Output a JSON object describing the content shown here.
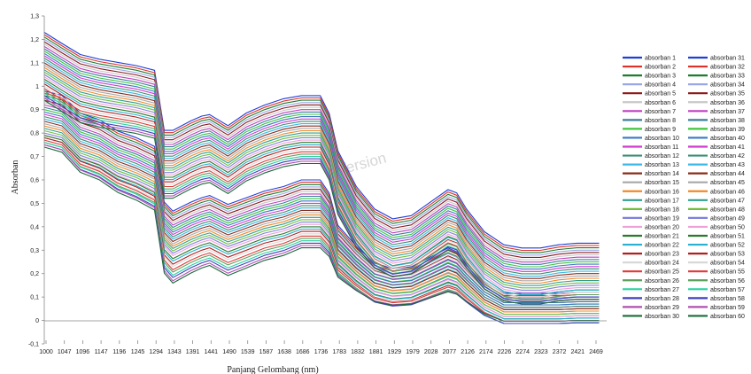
{
  "chart_data": {
    "type": "line",
    "xlabel": "Panjang Gelombang (nm)",
    "ylabel": "Absorban",
    "watermark": "Version",
    "ylim": [
      -0.1,
      1.3
    ],
    "xlim": [
      1000,
      2500
    ],
    "y_ticks": [
      "-0,1",
      "0",
      "0,1",
      "0,2",
      "0,3",
      "0,4",
      "0,5",
      "0,6",
      "0,7",
      "0,8",
      "0,9",
      "1",
      "1,1",
      "1,2",
      "1,3"
    ],
    "x_ticks": [
      "1000",
      "1047",
      "1096",
      "1147",
      "1196",
      "1245",
      "1294",
      "1343",
      "1391",
      "1441",
      "1490",
      "1539",
      "1587",
      "1638",
      "1686",
      "1736",
      "1783",
      "1832",
      "1881",
      "1929",
      "1979",
      "2028",
      "2077",
      "2126",
      "2174",
      "2226",
      "2274",
      "2323",
      "2372",
      "2421",
      "2469"
    ],
    "legend_position": "right",
    "profile_x": [
      1000,
      1047,
      1096,
      1147,
      1196,
      1245,
      1294,
      1320,
      1343,
      1391,
      1420,
      1441,
      1490,
      1539,
      1587,
      1638,
      1686,
      1736,
      1760,
      1783,
      1832,
      1881,
      1929,
      1979,
      2028,
      2077,
      2100,
      2126,
      2174,
      2226,
      2274,
      2323,
      2372,
      2421,
      2480
    ],
    "high_group": {
      "spectra": "absorban 31-60",
      "at_1000": [
        1.23,
        1.22,
        1.21,
        1.2,
        1.19,
        1.18,
        1.17,
        1.16,
        1.15,
        1.14,
        1.13,
        1.12,
        1.11,
        1.1,
        1.09,
        1.08,
        1.07,
        1.06,
        1.05,
        1.04,
        1.03,
        1.02,
        1.01,
        1.0,
        0.99,
        0.98,
        0.97,
        0.96,
        0.95,
        0.94
      ],
      "at_1736": [
        0.96,
        0.95,
        0.94,
        0.93,
        0.92,
        0.91,
        0.9,
        0.89,
        0.88,
        0.87,
        0.86,
        0.85,
        0.84,
        0.83,
        0.82,
        0.81,
        0.8,
        0.79,
        0.78,
        0.77,
        0.76,
        0.75,
        0.74,
        0.73,
        0.72,
        0.71,
        0.7,
        0.69,
        0.68,
        0.67
      ],
      "at_2469": [
        0.33,
        0.32,
        0.31,
        0.3,
        0.29,
        0.28,
        0.27,
        0.26,
        0.25,
        0.24,
        0.23,
        0.22,
        0.21,
        0.2,
        0.19,
        0.18,
        0.17,
        0.16,
        0.15,
        0.14,
        0.13,
        0.13,
        0.12,
        0.12,
        0.11,
        0.11,
        0.1,
        0.1,
        0.09,
        0.09
      ]
    },
    "low_group": {
      "spectra": "absorban 1-30",
      "at_1000": [
        0.98,
        0.97,
        0.96,
        0.95,
        0.94,
        0.93,
        0.92,
        0.91,
        0.9,
        0.89,
        0.88,
        0.87,
        0.86,
        0.85,
        0.84,
        0.83,
        0.82,
        0.81,
        0.8,
        0.79,
        0.79,
        0.78,
        0.78,
        0.77,
        0.77,
        0.76,
        0.76,
        0.75,
        0.75,
        0.74
      ],
      "at_1736": [
        0.6,
        0.59,
        0.58,
        0.57,
        0.56,
        0.55,
        0.54,
        0.53,
        0.52,
        0.51,
        0.5,
        0.49,
        0.48,
        0.47,
        0.46,
        0.45,
        0.44,
        0.43,
        0.42,
        0.41,
        0.4,
        0.39,
        0.38,
        0.37,
        0.36,
        0.35,
        0.34,
        0.33,
        0.32,
        0.31
      ],
      "at_2469": [
        0.12,
        0.11,
        0.1,
        0.1,
        0.09,
        0.09,
        0.08,
        0.08,
        0.07,
        0.07,
        0.06,
        0.06,
        0.05,
        0.05,
        0.04,
        0.04,
        0.03,
        0.03,
        0.02,
        0.02,
        0.01,
        0.01,
        0.0,
        0.0,
        0.0,
        -0.01,
        -0.01,
        -0.01,
        0.0,
        0.0
      ]
    },
    "series": [
      {
        "name": "absorban 1",
        "color": "#1f3fd6"
      },
      {
        "name": "absorban 2",
        "color": "#e0302a"
      },
      {
        "name": "absorban 3",
        "color": "#1e7d2e"
      },
      {
        "name": "absorban 4",
        "color": "#9aa7e8"
      },
      {
        "name": "absorban 5",
        "color": "#8b1a1a"
      },
      {
        "name": "absorban 6",
        "color": "#c8c8c8"
      },
      {
        "name": "absorban 7",
        "color": "#c040c0"
      },
      {
        "name": "absorban 8",
        "color": "#3a7f9a"
      },
      {
        "name": "absorban 9",
        "color": "#3ec43e"
      },
      {
        "name": "absorban 10",
        "color": "#3a78c8"
      },
      {
        "name": "absorban 11",
        "color": "#d23ad2"
      },
      {
        "name": "absorban 12",
        "color": "#3a8f70"
      },
      {
        "name": "absorban 13",
        "color": "#3ab8e8"
      },
      {
        "name": "absorban 14",
        "color": "#8b2b1a"
      },
      {
        "name": "absorban 15",
        "color": "#a8a8a8"
      },
      {
        "name": "absorban 16",
        "color": "#f08a2a"
      },
      {
        "name": "absorban 17",
        "color": "#2fa090"
      },
      {
        "name": "absorban 18",
        "color": "#6fbf3f"
      },
      {
        "name": "absorban 19",
        "color": "#8080e0"
      },
      {
        "name": "absorban 20",
        "color": "#f0a0d8"
      },
      {
        "name": "absorban 21",
        "color": "#2a7a2a"
      },
      {
        "name": "absorban 22",
        "color": "#2ab0d0"
      },
      {
        "name": "absorban 23",
        "color": "#b02020"
      },
      {
        "name": "absorban 24",
        "color": "#d8d8d8"
      },
      {
        "name": "absorban 25",
        "color": "#e03a3a"
      },
      {
        "name": "absorban 26",
        "color": "#5fa05f"
      },
      {
        "name": "absorban 27",
        "color": "#2ad0a0"
      },
      {
        "name": "absorban 28",
        "color": "#4040c0"
      },
      {
        "name": "absorban 29",
        "color": "#b050b0"
      },
      {
        "name": "absorban 30",
        "color": "#1a6a3a"
      },
      {
        "name": "absorban 31",
        "color": "#1f3fd6"
      },
      {
        "name": "absorban 32",
        "color": "#e0302a"
      },
      {
        "name": "absorban 33",
        "color": "#1e7d2e"
      },
      {
        "name": "absorban 34",
        "color": "#9aa7e8"
      },
      {
        "name": "absorban 35",
        "color": "#8b1a1a"
      },
      {
        "name": "absorban 36",
        "color": "#c8c8c8"
      },
      {
        "name": "absorban 37",
        "color": "#c040c0"
      },
      {
        "name": "absorban 38",
        "color": "#3a7f9a"
      },
      {
        "name": "absorban 39",
        "color": "#3ec43e"
      },
      {
        "name": "absorban 40",
        "color": "#3a78c8"
      },
      {
        "name": "absorban 41",
        "color": "#d23ad2"
      },
      {
        "name": "absorban 42",
        "color": "#3a8f70"
      },
      {
        "name": "absorban 43",
        "color": "#3ab8e8"
      },
      {
        "name": "absorban 44",
        "color": "#8b2b1a"
      },
      {
        "name": "absorban 45",
        "color": "#a8a8a8"
      },
      {
        "name": "absorban 46",
        "color": "#f08a2a"
      },
      {
        "name": "absorban 47",
        "color": "#2fa090"
      },
      {
        "name": "absorban 48",
        "color": "#6fbf3f"
      },
      {
        "name": "absorban 49",
        "color": "#8080e0"
      },
      {
        "name": "absorban 50",
        "color": "#f0a0d8"
      },
      {
        "name": "absorban 51",
        "color": "#2a7a2a"
      },
      {
        "name": "absorban 52",
        "color": "#2ab0d0"
      },
      {
        "name": "absorban 53",
        "color": "#b02020"
      },
      {
        "name": "absorban 54",
        "color": "#d8d8d8"
      },
      {
        "name": "absorban 55",
        "color": "#e03a3a"
      },
      {
        "name": "absorban 56",
        "color": "#5fa05f"
      },
      {
        "name": "absorban 57",
        "color": "#2ad0a0"
      },
      {
        "name": "absorban 58",
        "color": "#4040c0"
      },
      {
        "name": "absorban 59",
        "color": "#b050b0"
      },
      {
        "name": "absorban 60",
        "color": "#1a6a3a"
      }
    ]
  }
}
